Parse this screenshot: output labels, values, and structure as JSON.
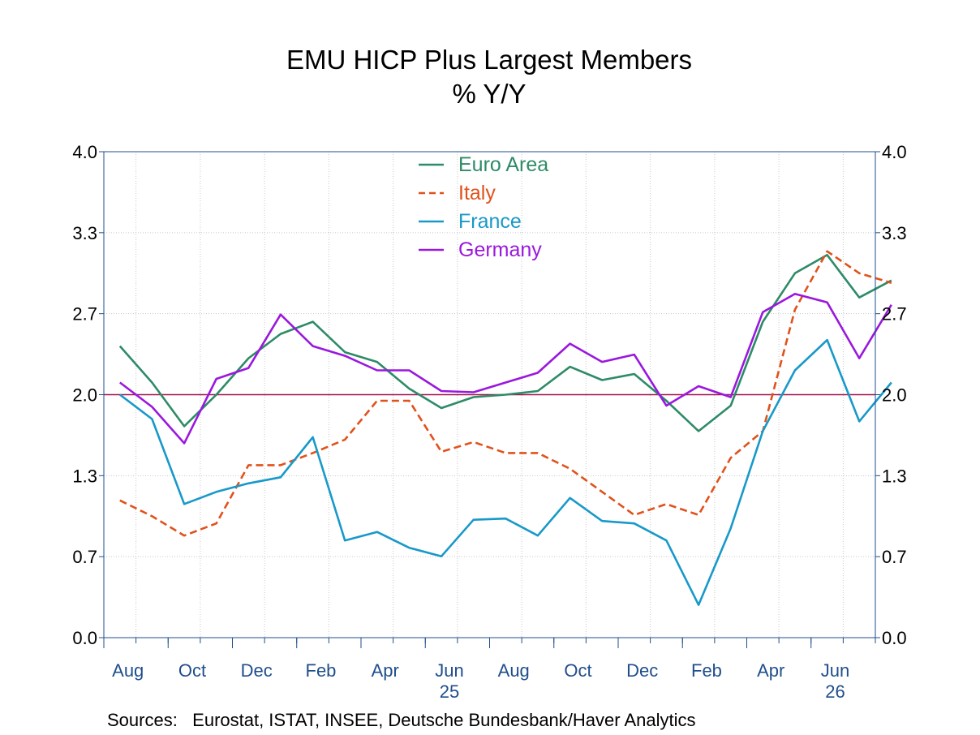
{
  "chart_data": {
    "type": "line",
    "title": "EMU HICP Plus Largest Members",
    "subtitle": "% Y/Y",
    "source": "Sources:   Eurostat, ISTAT, INSEE, Deutsche Bundesbank/Haver Analytics",
    "x_ticks": [
      {
        "label": "Aug",
        "index": 0
      },
      {
        "label": "Oct",
        "index": 2
      },
      {
        "label": "Dec",
        "index": 4
      },
      {
        "label": "Feb",
        "index": 6
      },
      {
        "label": "Apr",
        "index": 8
      },
      {
        "label": "Jun",
        "index": 10,
        "year": "25"
      },
      {
        "label": "Aug",
        "index": 12
      },
      {
        "label": "Oct",
        "index": 14
      },
      {
        "label": "Dec",
        "index": 16
      },
      {
        "label": "Feb",
        "index": 18
      },
      {
        "label": "Apr",
        "index": 20
      },
      {
        "label": "Jun",
        "index": 22,
        "year": "26"
      }
    ],
    "n_months": 24,
    "y_ticks": [
      "0.0",
      "0.7",
      "1.3",
      "2.0",
      "2.7",
      "3.3",
      "4.0"
    ],
    "ylim": [
      0,
      4
    ],
    "reference_line": 2.0,
    "legend_position": "top-center",
    "grid": true,
    "series": [
      {
        "name": "Euro Area",
        "color": "#2e8b67",
        "dash": false,
        "values": [
          2.4,
          2.1,
          1.74,
          2.0,
          2.3,
          2.5,
          2.6,
          2.35,
          2.27,
          2.05,
          1.89,
          1.98,
          2.0,
          2.03,
          2.23,
          2.12,
          2.17,
          1.95,
          1.7,
          1.91,
          2.6,
          3.0,
          3.15,
          2.8,
          2.94
        ]
      },
      {
        "name": "Italy",
        "color": "#e0521b",
        "dash": true,
        "values": [
          1.13,
          1.0,
          0.84,
          0.94,
          1.42,
          1.42,
          1.52,
          1.63,
          1.95,
          1.95,
          1.53,
          1.61,
          1.52,
          1.52,
          1.39,
          1.2,
          1.01,
          1.1,
          1.01,
          1.48,
          1.7,
          2.7,
          3.18,
          3.0,
          2.92
        ]
      },
      {
        "name": "France",
        "color": "#1899c9",
        "dash": false,
        "values": [
          2.0,
          1.8,
          1.1,
          1.2,
          1.27,
          1.32,
          1.65,
          0.8,
          0.87,
          0.74,
          0.67,
          0.97,
          0.98,
          0.84,
          1.15,
          0.96,
          0.94,
          0.8,
          0.27,
          0.9,
          1.7,
          2.2,
          2.45,
          1.78,
          2.1
        ]
      },
      {
        "name": "Germany",
        "color": "#9a18de",
        "dash": false,
        "values": [
          2.1,
          1.9,
          1.6,
          2.13,
          2.22,
          2.66,
          2.4,
          2.32,
          2.2,
          2.2,
          2.03,
          2.02,
          2.1,
          2.18,
          2.42,
          2.27,
          2.33,
          1.91,
          2.07,
          1.98,
          2.68,
          2.83,
          2.76,
          2.3,
          2.74
        ]
      }
    ]
  }
}
